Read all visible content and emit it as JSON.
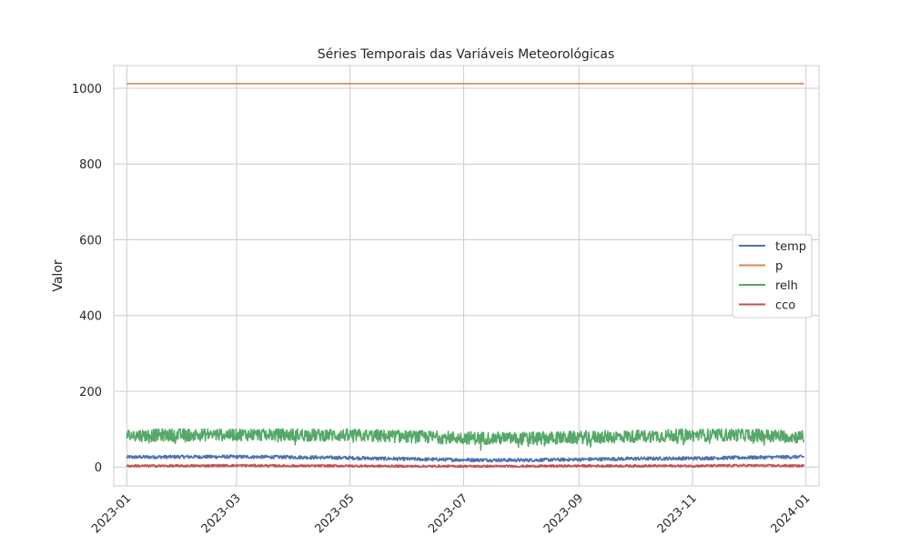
{
  "chart_data": {
    "type": "line",
    "title": "Séries Temporais das Variáveis Meteorológicas",
    "xlabel": "",
    "ylabel": "Valor",
    "x_range": [
      "2022-12-25",
      "2024-01-08"
    ],
    "x_ticks": [
      "2023-01",
      "2023-03",
      "2023-05",
      "2023-07",
      "2023-09",
      "2023-11",
      "2024-01"
    ],
    "ylim": [
      -50,
      1060
    ],
    "y_ticks": [
      0,
      200,
      400,
      600,
      800,
      1000
    ],
    "grid": true,
    "legend_position": "center-right",
    "series": [
      {
        "name": "temp",
        "color": "#4c72b0",
        "x": [
          "2023-01-01",
          "2023-02-01",
          "2023-03-01",
          "2023-04-01",
          "2023-05-01",
          "2023-06-01",
          "2023-07-01",
          "2023-08-01",
          "2023-09-01",
          "2023-10-01",
          "2023-11-01",
          "2023-12-01",
          "2023-12-31"
        ],
        "y": [
          26,
          27,
          27,
          26,
          24,
          21,
          19,
          18,
          20,
          22,
          23,
          25,
          27
        ]
      },
      {
        "name": "p",
        "color": "#dd8452",
        "x": [
          "2023-01-01",
          "2023-12-31"
        ],
        "y": [
          1012,
          1012
        ]
      },
      {
        "name": "relh",
        "color": "#55a868",
        "x": [
          "2023-01-01",
          "2023-02-01",
          "2023-03-01",
          "2023-04-01",
          "2023-05-01",
          "2023-06-01",
          "2023-07-01",
          "2023-08-01",
          "2023-09-01",
          "2023-10-01",
          "2023-11-01",
          "2023-12-01",
          "2023-12-31"
        ],
        "y": [
          78,
          80,
          81,
          80,
          79,
          75,
          72,
          70,
          73,
          76,
          79,
          80,
          74
        ],
        "range": [
          40,
          100
        ]
      },
      {
        "name": "cco",
        "color": "#c44e52",
        "x": [
          "2023-01-01",
          "2023-02-01",
          "2023-03-01",
          "2023-04-01",
          "2023-05-01",
          "2023-06-01",
          "2023-07-01",
          "2023-08-01",
          "2023-09-01",
          "2023-10-01",
          "2023-11-01",
          "2023-12-01",
          "2023-12-31"
        ],
        "y": [
          3,
          3,
          4,
          3,
          3,
          2,
          2,
          2,
          3,
          3,
          3,
          4,
          3
        ],
        "range": [
          0,
          10
        ]
      }
    ]
  }
}
